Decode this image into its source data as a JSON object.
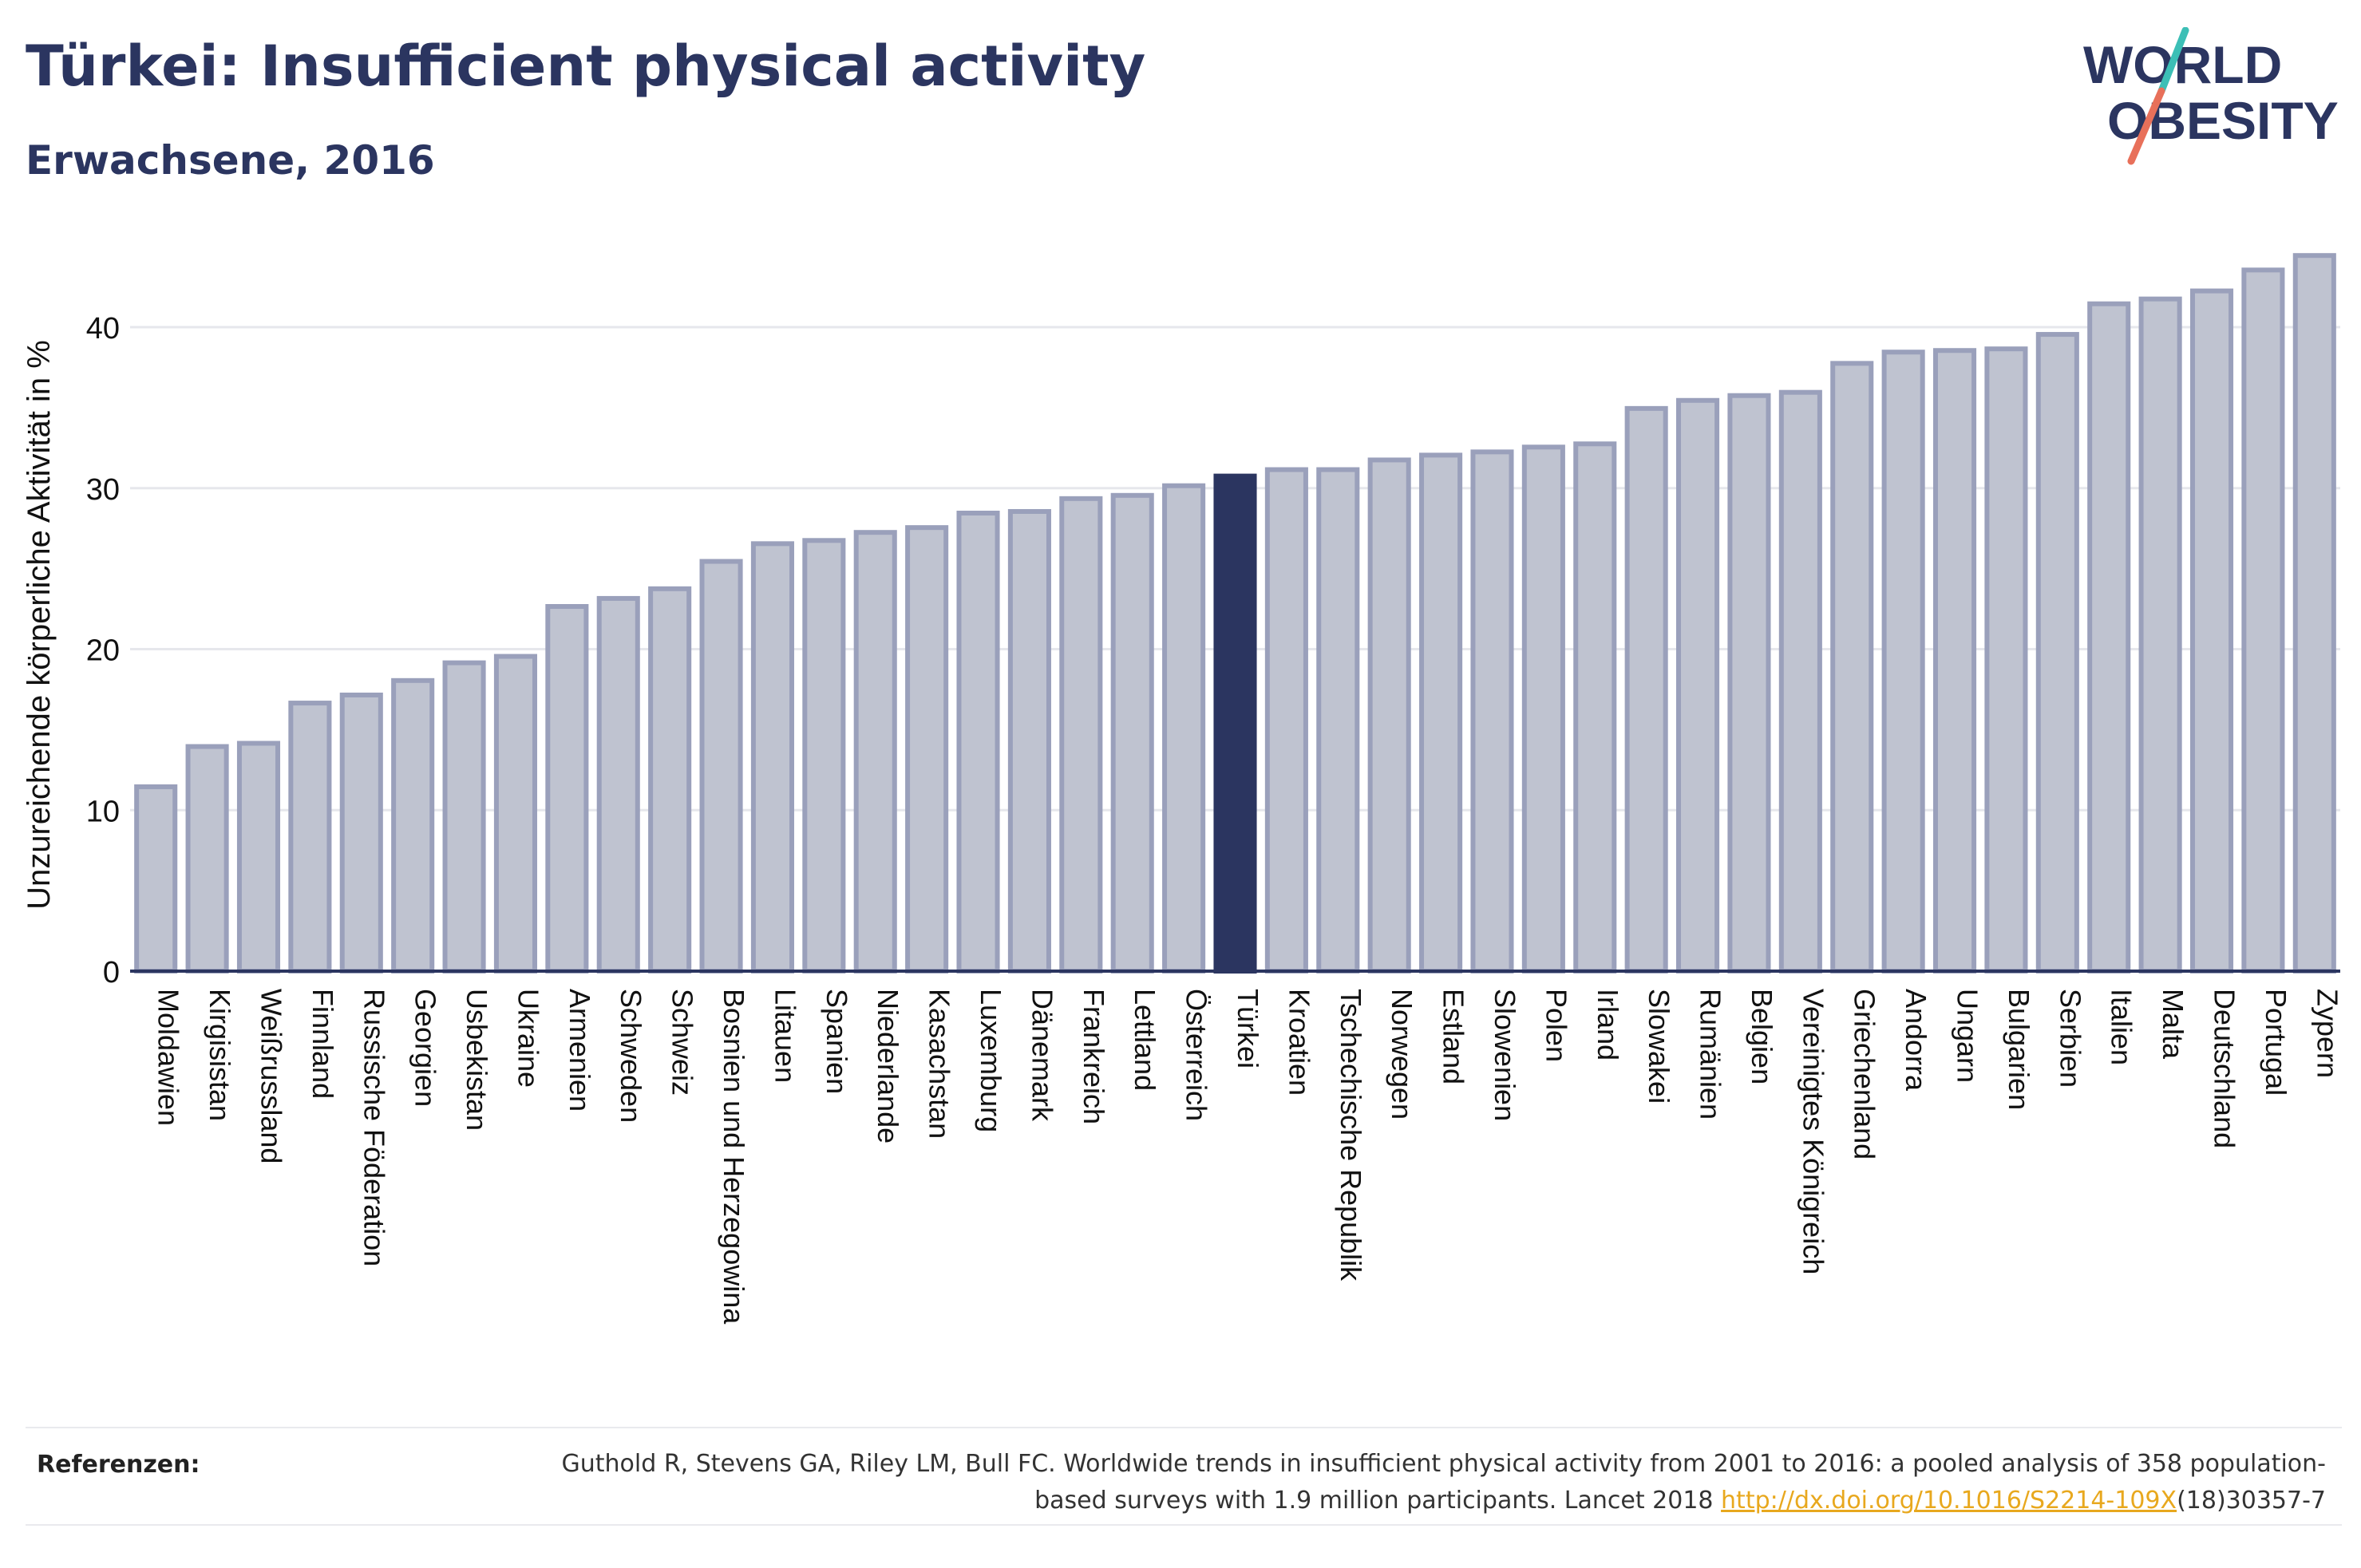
{
  "header": {
    "title": "Türkei: Insufficient physical activity",
    "subtitle": "Erwachsene, 2016"
  },
  "logo": {
    "line1": "WORLD",
    "line2": "OBESITY",
    "colors": {
      "text": "#2b3560",
      "slash_teal": "#3cbfb6",
      "slash_red": "#e8705a"
    }
  },
  "colors": {
    "bar_fill": "#bfc3d0",
    "bar_stroke": "#9aa0bb",
    "highlight_fill": "#2b3560",
    "axis": "#2b3560",
    "grid": "#e6e7ec"
  },
  "chart_data": {
    "type": "bar",
    "ylabel": "Unzureichende körperliche Aktivität in %",
    "ylim": [
      0,
      45
    ],
    "yticks": [
      0,
      10,
      20,
      30,
      40
    ],
    "grid": true,
    "highlight": "Türkei",
    "categories": [
      "Moldawien",
      "Kirgisistan",
      "Weißrussland",
      "Finnland",
      "Russische Föderation",
      "Georgien",
      "Usbekistan",
      "Ukraine",
      "Armenien",
      "Schweden",
      "Schweiz",
      "Bosnien und Herzegowina",
      "Litauen",
      "Spanien",
      "Niederlande",
      "Kasachstan",
      "Luxemburg",
      "Dänemark",
      "Frankreich",
      "Lettland",
      "Österreich",
      "Türkei",
      "Kroatien",
      "Tschechische Republik",
      "Norwegen",
      "Estland",
      "Slowenien",
      "Polen",
      "Irland",
      "Slowakei",
      "Rumänien",
      "Belgien",
      "Vereinigtes Königreich",
      "Griechenland",
      "Andorra",
      "Ungarn",
      "Bulgarien",
      "Serbien",
      "Italien",
      "Malta",
      "Deutschland",
      "Portugal",
      "Zypern"
    ],
    "values": [
      11.6,
      14.1,
      14.3,
      16.8,
      17.3,
      18.2,
      19.3,
      19.7,
      22.8,
      23.3,
      23.9,
      25.6,
      26.7,
      26.9,
      27.4,
      27.7,
      28.6,
      28.7,
      29.5,
      29.7,
      30.3,
      30.9,
      31.3,
      31.3,
      31.9,
      32.2,
      32.4,
      32.7,
      32.9,
      35.1,
      35.6,
      35.9,
      36.1,
      37.9,
      38.6,
      38.7,
      38.8,
      39.7,
      41.6,
      41.9,
      42.4,
      43.7,
      44.6
    ]
  },
  "references": {
    "label": "Referenzen:",
    "text_before": "Guthold R, Stevens GA, Riley LM, Bull FC. Worldwide trends in insufficient physical activity from 2001 to 2016: a pooled analysis of 358 population-based surveys with 1.9 million participants. Lancet 2018 ",
    "link": "http://dx.doi.org/10.1016/S2214-109X",
    "text_after": "(18)30357-7"
  }
}
